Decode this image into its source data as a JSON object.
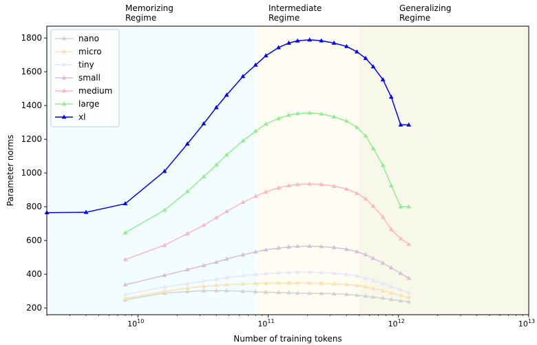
{
  "chart_data": {
    "type": "line",
    "title": "",
    "xlabel": "Number of training tokens",
    "ylabel": "Parameter norms",
    "xscale": "log",
    "xlim": [
      2000000000,
      10000000000000
    ],
    "ylim": [
      160,
      1870
    ],
    "x_ticks": [
      {
        "value": 10000000000,
        "base": "10",
        "exp": "10"
      },
      {
        "value": 100000000000,
        "base": "10",
        "exp": "11"
      },
      {
        "value": 1000000000000,
        "base": "10",
        "exp": "12"
      },
      {
        "value": 10000000000000,
        "base": "10",
        "exp": "13"
      }
    ],
    "y_ticks": [
      200,
      400,
      600,
      800,
      1000,
      1200,
      1400,
      1600,
      1800
    ],
    "regimes": [
      {
        "label_line1": "Memorizing",
        "label_line2": "Regime",
        "x_start": 2000000000,
        "x_end": 80000000000,
        "color": "#f1fdff"
      },
      {
        "label_line1": "Intermediate",
        "label_line2": "Regime",
        "x_start": 80000000000,
        "x_end": 500000000000,
        "color": "#fffdf1"
      },
      {
        "label_line1": "Generalizing",
        "label_line2": "Regime",
        "x_start": 500000000000,
        "x_end": 10000000000000,
        "color": "#f7f7ea"
      }
    ],
    "legend": {
      "position": "top-left"
    },
    "series": [
      {
        "name": "nano",
        "color": "#d3d3d3",
        "x": [
          8000000000.0,
          16000000000.0,
          24000000000.0,
          32000000000.0,
          40000000000.0,
          48000000000.0,
          64000000000.0,
          80000000000.0,
          96000000000.0,
          120000000000.0,
          144000000000.0,
          168000000000.0,
          208000000000.0,
          256000000000.0,
          320000000000.0,
          400000000000.0,
          480000000000.0,
          560000000000.0,
          640000000000.0,
          760000000000.0,
          880000000000.0,
          1040000000000.0,
          1200000000000.0
        ],
        "y": [
          248,
          288,
          297,
          302,
          302,
          302,
          299,
          296,
          294,
          292,
          290,
          288,
          287,
          286,
          284,
          281,
          276,
          270,
          264,
          258,
          250,
          243,
          237
        ]
      },
      {
        "name": "micro",
        "color": "#ffe0b3",
        "x": [
          8000000000.0,
          16000000000.0,
          24000000000.0,
          32000000000.0,
          40000000000.0,
          48000000000.0,
          64000000000.0,
          80000000000.0,
          96000000000.0,
          120000000000.0,
          144000000000.0,
          168000000000.0,
          208000000000.0,
          256000000000.0,
          320000000000.0,
          400000000000.0,
          480000000000.0,
          560000000000.0,
          640000000000.0,
          760000000000.0,
          880000000000.0,
          1040000000000.0,
          1200000000000.0
        ],
        "y": [
          257,
          298,
          318,
          328,
          334,
          338,
          342,
          345,
          347,
          348,
          349,
          349,
          348,
          346,
          343,
          339,
          333,
          325,
          315,
          302,
          288,
          275,
          263
        ]
      },
      {
        "name": "tiny",
        "color": "#e6e6fa",
        "x": [
          8000000000.0,
          16000000000.0,
          24000000000.0,
          32000000000.0,
          40000000000.0,
          48000000000.0,
          64000000000.0,
          80000000000.0,
          96000000000.0,
          120000000000.0,
          144000000000.0,
          168000000000.0,
          208000000000.0,
          256000000000.0,
          320000000000.0,
          400000000000.0,
          480000000000.0,
          560000000000.0,
          640000000000.0,
          760000000000.0,
          880000000000.0,
          1040000000000.0,
          1200000000000.0
        ],
        "y": [
          280,
          325,
          345,
          360,
          370,
          380,
          392,
          399,
          404,
          408,
          411,
          412,
          412,
          410,
          406,
          399,
          390,
          378,
          364,
          346,
          327,
          308,
          290
        ]
      },
      {
        "name": "small",
        "color": "#d8bfd8",
        "x": [
          8000000000.0,
          16000000000.0,
          24000000000.0,
          32000000000.0,
          40000000000.0,
          48000000000.0,
          64000000000.0,
          80000000000.0,
          96000000000.0,
          120000000000.0,
          144000000000.0,
          168000000000.0,
          208000000000.0,
          256000000000.0,
          320000000000.0,
          400000000000.0,
          480000000000.0,
          560000000000.0,
          640000000000.0,
          760000000000.0,
          880000000000.0,
          1040000000000.0,
          1200000000000.0
        ],
        "y": [
          337,
          393,
          427,
          452,
          472,
          490,
          515,
          532,
          545,
          555,
          561,
          565,
          566,
          564,
          558,
          548,
          534,
          516,
          494,
          466,
          438,
          405,
          376
        ]
      },
      {
        "name": "medium",
        "color": "#ffb6c1",
        "x": [
          8000000000.0,
          16000000000.0,
          24000000000.0,
          32000000000.0,
          40000000000.0,
          48000000000.0,
          64000000000.0,
          80000000000.0,
          96000000000.0,
          120000000000.0,
          144000000000.0,
          168000000000.0,
          208000000000.0,
          256000000000.0,
          320000000000.0,
          400000000000.0,
          480000000000.0,
          560000000000.0,
          640000000000.0,
          760000000000.0,
          880000000000.0,
          1040000000000.0,
          1200000000000.0
        ],
        "y": [
          487,
          572,
          640,
          690,
          735,
          772,
          826,
          862,
          888,
          912,
          925,
          932,
          935,
          932,
          922,
          905,
          880,
          847,
          803,
          738,
          665,
          610,
          578
        ]
      },
      {
        "name": "large",
        "color": "#90ee90",
        "x": [
          8000000000.0,
          16000000000.0,
          24000000000.0,
          32000000000.0,
          40000000000.0,
          48000000000.0,
          64000000000.0,
          80000000000.0,
          96000000000.0,
          120000000000.0,
          144000000000.0,
          168000000000.0,
          208000000000.0,
          256000000000.0,
          320000000000.0,
          400000000000.0,
          480000000000.0,
          560000000000.0,
          640000000000.0,
          760000000000.0,
          880000000000.0,
          1040000000000.0,
          1200000000000.0
        ],
        "y": [
          646,
          780,
          890,
          978,
          1048,
          1108,
          1190,
          1248,
          1290,
          1323,
          1343,
          1352,
          1356,
          1350,
          1333,
          1308,
          1270,
          1220,
          1145,
          1045,
          925,
          800,
          800
        ]
      },
      {
        "name": "xl",
        "color": "#0000ff",
        "x": [
          2000000000.0,
          4000000000.0,
          8000000000.0,
          16000000000.0,
          24000000000.0,
          32000000000.0,
          40000000000.0,
          48000000000.0,
          64000000000.0,
          80000000000.0,
          96000000000.0,
          120000000000.0,
          144000000000.0,
          168000000000.0,
          208000000000.0,
          256000000000.0,
          320000000000.0,
          400000000000.0,
          480000000000.0,
          560000000000.0,
          640000000000.0,
          760000000000.0,
          880000000000.0,
          1040000000000.0,
          1200000000000.0
        ],
        "y": [
          765,
          767,
          818,
          1010,
          1172,
          1292,
          1388,
          1462,
          1572,
          1640,
          1695,
          1743,
          1770,
          1783,
          1789,
          1784,
          1770,
          1750,
          1718,
          1680,
          1630,
          1553,
          1450,
          1285,
          1285
        ]
      }
    ]
  }
}
